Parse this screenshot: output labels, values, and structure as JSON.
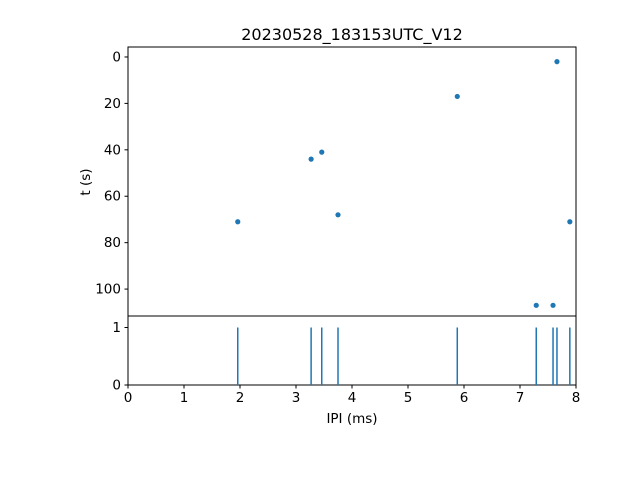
{
  "figure": {
    "background": "#ffffff",
    "accent_color": "#1f77b4"
  },
  "chart_data": [
    {
      "type": "scatter",
      "title": "20230528_183153UTC_V12",
      "ylabel": "t (s)",
      "marker_color": "#1f77b4",
      "xlim": [
        0,
        8
      ],
      "ylim": [
        -4.3,
        111.6
      ],
      "y_inverted": true,
      "yticks": [
        0,
        20,
        40,
        60,
        80,
        100
      ],
      "points": [
        [
          1.96,
          71
        ],
        [
          3.27,
          44
        ],
        [
          3.46,
          41
        ],
        [
          3.75,
          68
        ],
        [
          5.88,
          17
        ],
        [
          7.29,
          107
        ],
        [
          7.59,
          107
        ],
        [
          7.66,
          2
        ],
        [
          7.89,
          71
        ]
      ]
    },
    {
      "type": "event-lines",
      "xlabel": "IPI (ms)",
      "line_color": "#1f77b4",
      "xlim": [
        0,
        8
      ],
      "ylim": [
        0,
        1.2
      ],
      "y_inverted": false,
      "xticks": [
        0,
        1,
        2,
        3,
        4,
        5,
        6,
        7,
        8
      ],
      "yticks": [
        0,
        1
      ],
      "line_base": 0,
      "line_top": 1,
      "x": [
        1.96,
        3.27,
        3.46,
        3.75,
        5.88,
        7.29,
        7.59,
        7.66,
        7.89
      ]
    }
  ]
}
